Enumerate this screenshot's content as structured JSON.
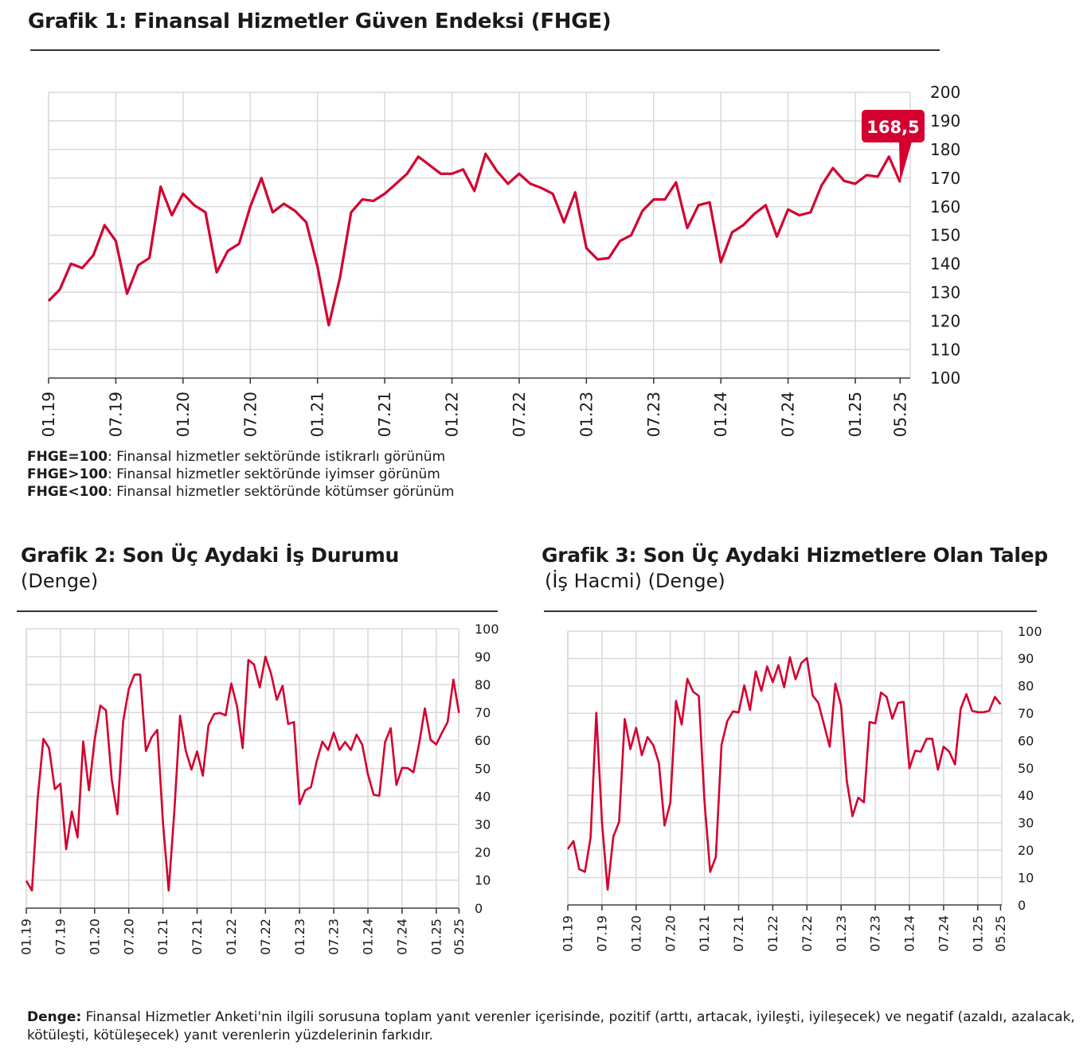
{
  "chart1": {
    "title": "Grafik 1: Finansal Hizmetler Güven Endeksi (FHGE)",
    "notes": [
      {
        "key": "FHGE=100",
        "text": ": Finansal hizmetler sektöründe istikrarlı görünüm"
      },
      {
        "key": "FHGE>100",
        "text": ": Finansal hizmetler sektöründe iyimser görünüm"
      },
      {
        "key": "FHGE<100",
        "text": ": Finansal hizmetler sektöründe kötümser görünüm"
      }
    ],
    "callout": "168,5"
  },
  "chart2": {
    "title": "Grafik 2: Son Üç Aydaki İş Durumu",
    "subtitle": "(Denge)"
  },
  "chart3": {
    "title": "Grafik 3: Son Üç Aydaki Hizmetlere Olan Talep",
    "subtitle": "(İş Hacmi) (Denge)"
  },
  "footnote": {
    "key": "Denge:",
    "text": " Finansal Hizmetler Anketi'nin ilgili sorusuna toplam yanıt verenler içerisinde, pozitif (arttı, artacak, iyileşti, iyileşecek) ve negatif (azaldı, azalacak, kötüleşti, kötüleşecek) yanıt verenlerin yüzdelerinin farkıdır."
  },
  "colors": {
    "line": "#d4002f",
    "grid": "#d9d9d9",
    "callout": "#d4002f"
  },
  "chart_data": [
    {
      "type": "line",
      "title": "Grafik 1: Finansal Hizmetler Güven Endeksi (FHGE)",
      "x_range": [
        "01.19",
        "05.25"
      ],
      "frequency": "monthly",
      "xticks": [
        "01.19",
        "07.19",
        "01.20",
        "07.20",
        "01.21",
        "07.21",
        "01.22",
        "07.22",
        "01.23",
        "07.23",
        "01.24",
        "07.24",
        "01.25",
        "05.25"
      ],
      "ylim": [
        100,
        200
      ],
      "yticks": [
        100,
        110,
        120,
        130,
        140,
        150,
        160,
        170,
        180,
        190,
        200
      ],
      "grid": true,
      "values": [
        127,
        131,
        140,
        138.5,
        143,
        153.5,
        148,
        129.5,
        139.5,
        142,
        167,
        157,
        164.5,
        160.5,
        158,
        137,
        144.5,
        147,
        160,
        170,
        158,
        161,
        158.5,
        154.5,
        139,
        118.5,
        135,
        158,
        162.5,
        162,
        164.5,
        168,
        171.5,
        177.5,
        174.5,
        171.5,
        171.5,
        173,
        165.5,
        178.5,
        172.5,
        168,
        171.5,
        168,
        166.5,
        164.5,
        154.5,
        165,
        145.5,
        141.5,
        142,
        148,
        150,
        158.5,
        162.5,
        162.5,
        168.5,
        152.5,
        160.5,
        161.5,
        140.5,
        151,
        153.5,
        157.5,
        160.5,
        149.5,
        159,
        157,
        158,
        167.5,
        173.5,
        169,
        168,
        171,
        170.5,
        177.5,
        168.5
      ],
      "annotation": "168,5"
    },
    {
      "type": "line",
      "title": "Grafik 2: Son Üç Aydaki İş Durumu",
      "x_range": [
        "01.19",
        "05.25"
      ],
      "frequency": "monthly",
      "xticks": [
        "01.19",
        "07.19",
        "01.20",
        "07.20",
        "01.21",
        "07.21",
        "01.22",
        "07.22",
        "01.23",
        "07.23",
        "01.24",
        "07.24",
        "01.25",
        "05.25"
      ],
      "ylim": [
        0,
        100
      ],
      "yticks": [
        0,
        10,
        20,
        30,
        40,
        50,
        60,
        70,
        80,
        90,
        100
      ],
      "grid": true,
      "values": [
        9.8,
        6.3,
        39.3,
        60.6,
        57.3,
        42.6,
        44.5,
        21.1,
        34.6,
        25.3,
        59.7,
        42.2,
        60.2,
        72.5,
        70.8,
        46,
        33.6,
        66.8,
        78.4,
        83.6,
        83.6,
        56.2,
        61.1,
        63.8,
        30.8,
        6.3,
        34.6,
        68.9,
        56.4,
        49.6,
        56.1,
        47.4,
        65.4,
        69.5,
        69.9,
        69,
        80.4,
        72.3,
        57.3,
        88.8,
        87.2,
        79,
        90,
        83.9,
        74.6,
        79.6,
        65.9,
        66.6,
        37.2,
        42.2,
        43.3,
        52.6,
        59.6,
        56.6,
        62.8,
        56.6,
        59.5,
        56.6,
        62.1,
        58.5,
        47.9,
        40.6,
        40.2,
        59.4,
        64.4,
        44.1,
        50.2,
        50.1,
        48.6,
        59,
        71.5,
        60.2,
        58.6,
        62.8,
        66.6,
        81.8,
        69.9
      ]
    },
    {
      "type": "line",
      "title": "Grafik 3: Son Üç Aydaki Hizmetlere Olan Talep",
      "x_range": [
        "01.19",
        "05.25"
      ],
      "frequency": "monthly",
      "xticks": [
        "01.19",
        "07.19",
        "01.20",
        "07.20",
        "01.21",
        "07.21",
        "01.22",
        "07.22",
        "01.23",
        "07.23",
        "01.24",
        "07.24",
        "01.25",
        "05.25"
      ],
      "ylim": [
        0,
        100
      ],
      "yticks": [
        0,
        10,
        20,
        30,
        40,
        50,
        60,
        70,
        80,
        90,
        100
      ],
      "grid": true,
      "values": [
        20.4,
        23.3,
        13.1,
        12.1,
        24.5,
        70.2,
        30.3,
        5.6,
        25,
        30.3,
        67.9,
        56.9,
        64.7,
        54.7,
        61.3,
        58.4,
        51.9,
        29,
        37.3,
        74.5,
        65.9,
        82.6,
        77.9,
        76.3,
        38,
        12.1,
        17.5,
        58.4,
        67.1,
        70.7,
        70.3,
        80.2,
        71.2,
        85.3,
        78.2,
        87.1,
        81.4,
        87.6,
        79.5,
        90.5,
        82.4,
        88.3,
        90.2,
        76.5,
        73.8,
        65.8,
        57.8,
        80.8,
        72.8,
        45.5,
        32.4,
        39.2,
        37.5,
        66.8,
        66.3,
        77.6,
        76,
        68,
        73.8,
        74.2,
        49.9,
        56.3,
        56,
        60.7,
        60.7,
        49.4,
        57.8,
        56,
        51.3,
        71.6,
        77,
        70.9,
        70.4,
        70.4,
        70.9,
        76,
        73.3
      ]
    }
  ]
}
